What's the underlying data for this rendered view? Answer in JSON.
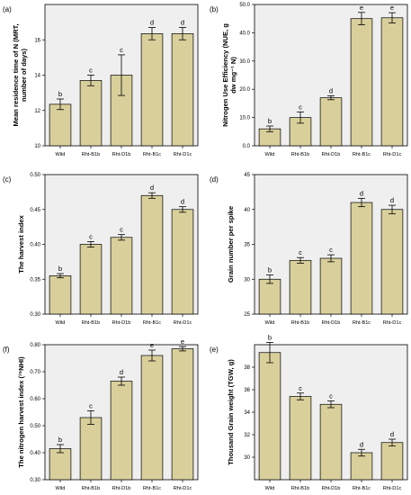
{
  "chart_data": [
    {
      "type": "bar",
      "panel_tag": "(a)",
      "ylabel": "Mean residence time of N (MRT, number of days)",
      "xlabel": "",
      "categories": [
        "Wild",
        "Rht-B1b",
        "Rht-D1b",
        "Rht-B1c",
        "Rht-D1c"
      ],
      "values": [
        12.35,
        13.7,
        14.0,
        16.35,
        16.35
      ],
      "errors": [
        0.3,
        0.3,
        1.15,
        0.35,
        0.35
      ],
      "significance": [
        "b",
        "c",
        "c",
        "d",
        "d"
      ],
      "ylim": [
        10,
        18
      ],
      "yticks": [
        "10",
        "12",
        "14",
        "16"
      ],
      "grid": false
    },
    {
      "type": "bar",
      "panel_tag": "(b)",
      "ylabel": "Nitrogen Use Efficiency (NUE, g dw mg⁻¹ N)",
      "xlabel": "",
      "categories": [
        "Wild",
        "Rht-B1b",
        "Rht-D1b",
        "Rht-B1c",
        "Rht-D1c"
      ],
      "values": [
        6.0,
        10.0,
        17.0,
        45.0,
        45.3
      ],
      "errors": [
        1.0,
        2.0,
        0.7,
        2.2,
        1.8
      ],
      "significance": [
        "b",
        "c",
        "d",
        "e",
        "e"
      ],
      "ylim": [
        0,
        50
      ],
      "yticks": [
        "0.0",
        "10.0",
        "20.0",
        "30.0",
        "40.0",
        "50.0"
      ],
      "grid": false
    },
    {
      "type": "bar",
      "panel_tag": "(c)",
      "ylabel": "The harvest index",
      "xlabel": "",
      "categories": [
        "Wild",
        "Rht-B1b",
        "Rht-D1b",
        "Rht-B1c",
        "Rht-D1c"
      ],
      "values": [
        0.355,
        0.4,
        0.41,
        0.47,
        0.45
      ],
      "errors": [
        0.003,
        0.004,
        0.004,
        0.004,
        0.004
      ],
      "significance": [
        "b",
        "c",
        "c",
        "d",
        "d"
      ],
      "ylim": [
        0.3,
        0.5
      ],
      "yticks": [
        "0.30",
        "0.35",
        "0.40",
        "0.45",
        "0.50"
      ],
      "grid": false
    },
    {
      "type": "bar",
      "panel_tag": "(d)",
      "ylabel": "Grain number per spike",
      "xlabel": "",
      "categories": [
        "Wild",
        "Rht-B1b",
        "Rht-D1b",
        "Rht-B1c",
        "Rht-D1c"
      ],
      "values": [
        30.0,
        32.7,
        33.0,
        41.0,
        40.0
      ],
      "errors": [
        0.6,
        0.4,
        0.5,
        0.6,
        0.6
      ],
      "significance": [
        "b",
        "c",
        "c",
        "d",
        "d"
      ],
      "ylim": [
        25,
        45
      ],
      "yticks": [
        "25",
        "30",
        "35",
        "40",
        "45"
      ],
      "grid": false
    },
    {
      "type": "bar",
      "panel_tag": "(f)",
      "ylabel": "The nitrogen harvest index (¹⁵NHI)",
      "xlabel": "",
      "categories": [
        "Wild",
        "Rht-B1b",
        "Rht-D1b",
        "Rht-B1c",
        "Rht-D1c"
      ],
      "values": [
        0.415,
        0.53,
        0.665,
        0.76,
        0.785
      ],
      "errors": [
        0.015,
        0.025,
        0.015,
        0.02,
        0.008
      ],
      "significance": [
        "b",
        "c",
        "d",
        "e",
        "e"
      ],
      "ylim": [
        0.3,
        0.8
      ],
      "yticks": [
        "0.30",
        "0.40",
        "0.50",
        "0.60",
        "0.70",
        "0.80"
      ],
      "grid": false
    },
    {
      "type": "bar",
      "panel_tag": "(e)",
      "ylabel": "Thousand Grain weight (TGW, g)",
      "xlabel": "",
      "categories": [
        "Wild",
        "Rht-B1b",
        "Rht-D1b",
        "Rht-B1c",
        "Rht-D1c"
      ],
      "values": [
        39.3,
        35.4,
        34.7,
        30.4,
        31.3
      ],
      "errors": [
        0.9,
        0.3,
        0.3,
        0.3,
        0.3
      ],
      "significance": [
        "b",
        "c",
        "c",
        "d",
        "d"
      ],
      "ylim": [
        28,
        40
      ],
      "yticks": [
        "30",
        "32",
        "34",
        "36",
        "38"
      ],
      "grid": false
    }
  ]
}
